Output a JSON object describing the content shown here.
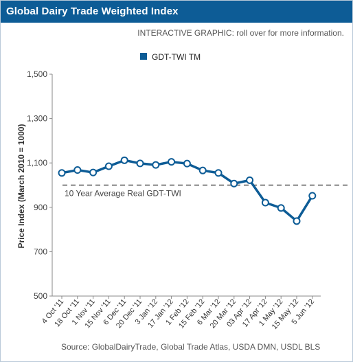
{
  "header": {
    "title": "Global Dairy Trade Weighted Index",
    "interactive_note": "INTERACTIVE GRAPHIC: roll over for more information."
  },
  "footer": {
    "source": "Source: GlobalDairyTrade, Global Trade Atlas, USDA DMN, USDL BLS"
  },
  "chart_data": {
    "type": "line",
    "ylabel": "Price Index (March 2010 = 1000)",
    "xlabel": "",
    "ylim": [
      500,
      1500
    ],
    "yticks": [
      "1,500",
      "1,300",
      "1,100",
      "900",
      "700",
      "500"
    ],
    "grid": false,
    "legend_position": "top-center",
    "categories": [
      "4 Oct '11",
      "18 Oct '11",
      "1 Nov '11",
      "15 Nov '11",
      "6 Dec '11",
      "20 Dec '11",
      "3 Jan '12",
      "17 Jan '12",
      "1 Feb '12",
      "15 Feb '12",
      "6 Mar '12",
      "20 Mar '12",
      "03 Apr '12",
      "17 Apr '12",
      "1 May '12",
      "15 May '12",
      "5 Jun '12"
    ],
    "series": [
      {
        "name": "GDT-TWI TM",
        "color": "#0d5c96",
        "values": [
          1055,
          1068,
          1057,
          1085,
          1112,
          1098,
          1091,
          1105,
          1097,
          1066,
          1055,
          1007,
          1022,
          921,
          897,
          838,
          952
        ]
      }
    ],
    "reference_line": {
      "label": "10 Year Average Real GDT-TWI",
      "value": 1000,
      "color": "#555555"
    }
  }
}
